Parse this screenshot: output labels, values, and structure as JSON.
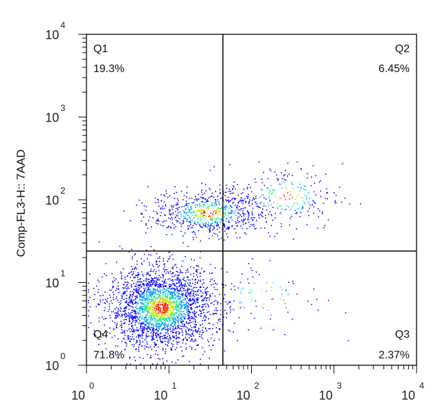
{
  "chart_data": {
    "type": "scatter",
    "title": "",
    "xlabel": "",
    "ylabel": "Comp-FL3-H:: 7AAD",
    "xscale": "log",
    "yscale": "log",
    "xlim": [
      1,
      10000
    ],
    "ylim": [
      1,
      10000
    ],
    "x_tick_labels": [
      {
        "base": "10",
        "exp": "0"
      },
      {
        "base": "10",
        "exp": "1"
      },
      {
        "base": "10",
        "exp": "2"
      },
      {
        "base": "10",
        "exp": "3"
      },
      {
        "base": "10",
        "exp": "4"
      }
    ],
    "y_tick_labels": [
      {
        "base": "10",
        "exp": "0"
      },
      {
        "base": "10",
        "exp": "1"
      },
      {
        "base": "10",
        "exp": "2"
      },
      {
        "base": "10",
        "exp": "3"
      },
      {
        "base": "10",
        "exp": "4"
      }
    ],
    "gate": {
      "x": 45,
      "y": 24
    },
    "quadrants": [
      {
        "name": "Q1",
        "percent": "19.3%"
      },
      {
        "name": "Q2",
        "percent": "6.45%"
      },
      {
        "name": "Q3",
        "percent": "2.37%"
      },
      {
        "name": "Q4",
        "percent": "71.8%"
      }
    ],
    "populations": [
      {
        "region": "Q4",
        "center": [
          8,
          5
        ],
        "spread": [
          0.32,
          0.25
        ],
        "share": 0.718
      },
      {
        "region": "Q1",
        "center": [
          30,
          70
        ],
        "spread": [
          0.35,
          0.14
        ],
        "share": 0.193
      },
      {
        "region": "Q2",
        "center": [
          250,
          110
        ],
        "spread": [
          0.35,
          0.2
        ],
        "share": 0.0645
      },
      {
        "region": "Q3",
        "center": [
          150,
          7
        ],
        "spread": [
          0.35,
          0.25
        ],
        "share": 0.0237
      }
    ],
    "density_colors": [
      "#0000ff",
      "#00a0ff",
      "#20e0a0",
      "#c8e000",
      "#ff2000"
    ],
    "grid": false,
    "legend": "none"
  }
}
